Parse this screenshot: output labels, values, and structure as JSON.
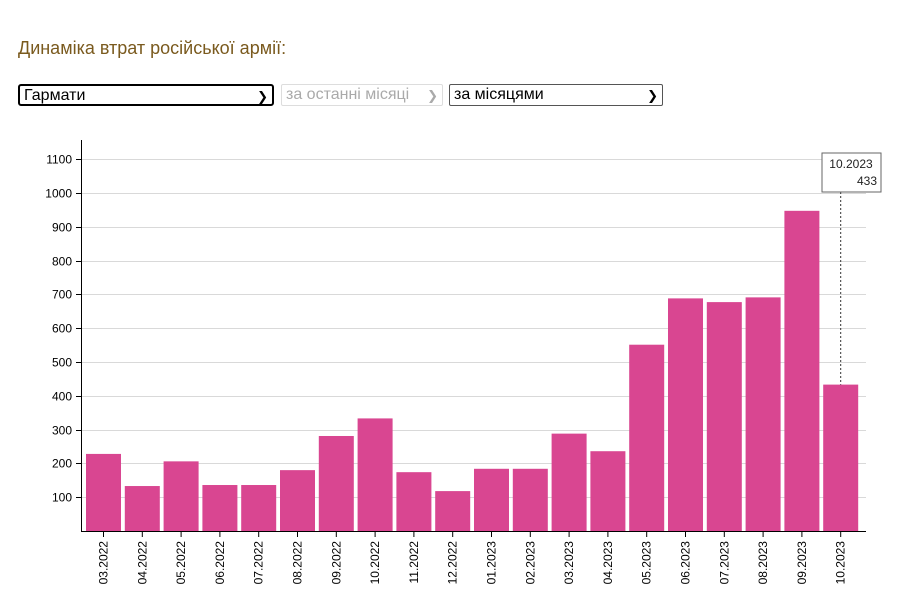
{
  "page_title": "Динаміка втрат російської армії:",
  "controls": {
    "weapon_value": "Гармати",
    "period_value": "за останні місяці",
    "mode_value": "за місяцями"
  },
  "tooltip": {
    "month": "10.2023",
    "value": "433"
  },
  "colors": {
    "bar": "#d94691",
    "title": "#7a5a1e"
  },
  "chart_data": {
    "type": "bar",
    "categories": [
      "03.2022",
      "04.2022",
      "05.2022",
      "06.2022",
      "07.2022",
      "08.2022",
      "09.2022",
      "10.2022",
      "11.2022",
      "12.2022",
      "01.2023",
      "02.2023",
      "03.2023",
      "04.2023",
      "05.2023",
      "06.2023",
      "07.2023",
      "08.2023",
      "09.2023",
      "10.2023"
    ],
    "values": [
      228,
      133,
      206,
      136,
      136,
      180,
      281,
      333,
      174,
      118,
      184,
      184,
      288,
      236,
      551,
      688,
      677,
      691,
      947,
      433
    ],
    "title": "",
    "xlabel": "",
    "ylabel": "",
    "ylim": [
      0,
      1150
    ],
    "yticks": [
      100,
      200,
      300,
      400,
      500,
      600,
      700,
      800,
      900,
      1000,
      1100
    ],
    "grid": true
  }
}
